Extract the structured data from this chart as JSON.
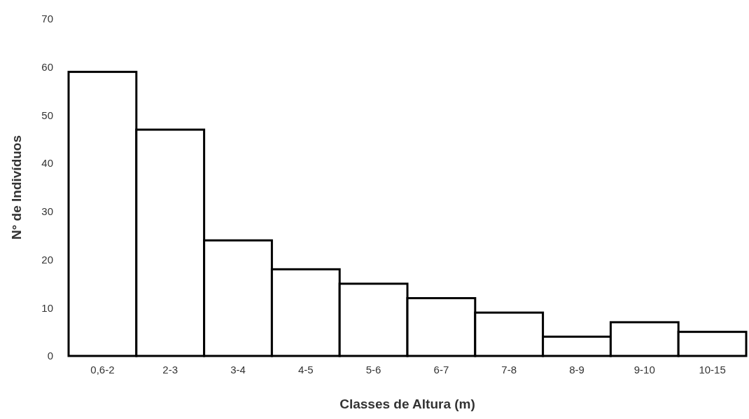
{
  "chart_data": {
    "type": "bar",
    "xlabel": "Classes de Altura (m)",
    "ylabel": "N° de Indivíduos",
    "categories": [
      "0,6-2",
      "2-3",
      "3-4",
      "4-5",
      "5-6",
      "6-7",
      "7-8",
      "8-9",
      "9-10",
      "10-15"
    ],
    "values": [
      59,
      47,
      24,
      18,
      15,
      12,
      9,
      4,
      7,
      5
    ],
    "color": "#ffffff",
    "ylim": [
      0,
      70
    ],
    "yticks": [
      0,
      10,
      20,
      30,
      40,
      50,
      60,
      70
    ],
    "grid": false
  }
}
